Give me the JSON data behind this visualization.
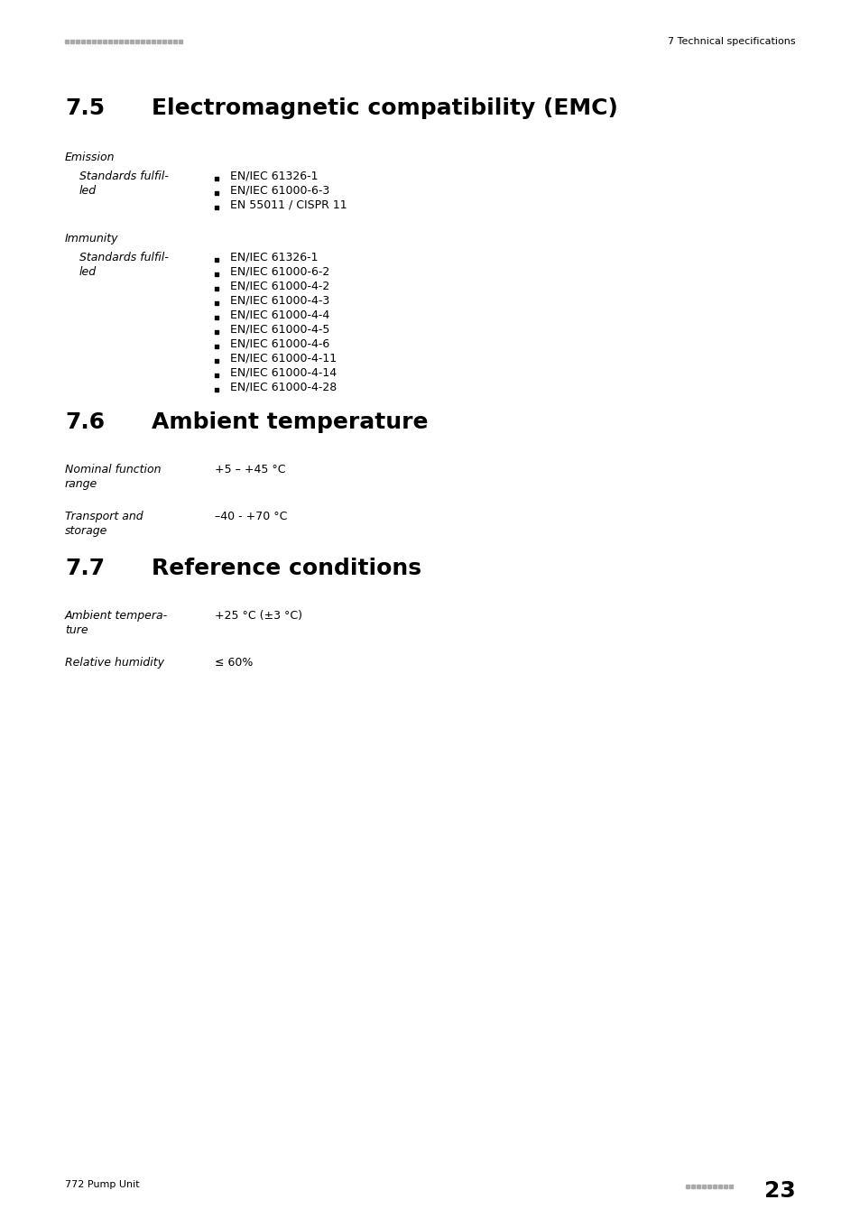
{
  "header_right": "7 Technical specifications",
  "section_75_num": "7.5",
  "section_75_title": "Electromagnetic compatibility (EMC)",
  "emission_label": "Emission",
  "emission_standards": [
    "EN/IEC 61326-1",
    "EN/IEC 61000-6-3",
    "EN 55011 / CISPR 11"
  ],
  "immunity_label": "Immunity",
  "immunity_standards": [
    "EN/IEC 61326-1",
    "EN/IEC 61000-6-2",
    "EN/IEC 61000-4-2",
    "EN/IEC 61000-4-3",
    "EN/IEC 61000-4-4",
    "EN/IEC 61000-4-5",
    "EN/IEC 61000-4-6",
    "EN/IEC 61000-4-11",
    "EN/IEC 61000-4-14",
    "EN/IEC 61000-4-28"
  ],
  "section_76_num": "7.6",
  "section_76_title": "Ambient temperature",
  "nominal_label_1": "Nominal function",
  "nominal_label_2": "range",
  "nominal_value": "+5 – +45 °C",
  "transport_label_1": "Transport and",
  "transport_label_2": "storage",
  "transport_value": "–40 - +70 °C",
  "section_77_num": "7.7",
  "section_77_title": "Reference conditions",
  "ambient_label_1": "Ambient tempera-",
  "ambient_label_2": "ture",
  "ambient_value": "+25 °C (±3 °C)",
  "humidity_label": "Relative humidity",
  "humidity_value": "≤ 60%",
  "footer_left": "772 Pump Unit",
  "footer_page": "23",
  "bg_color": "#ffffff",
  "text_color": "#000000",
  "gray_color": "#aaaaaa",
  "dark_gray": "#888888"
}
